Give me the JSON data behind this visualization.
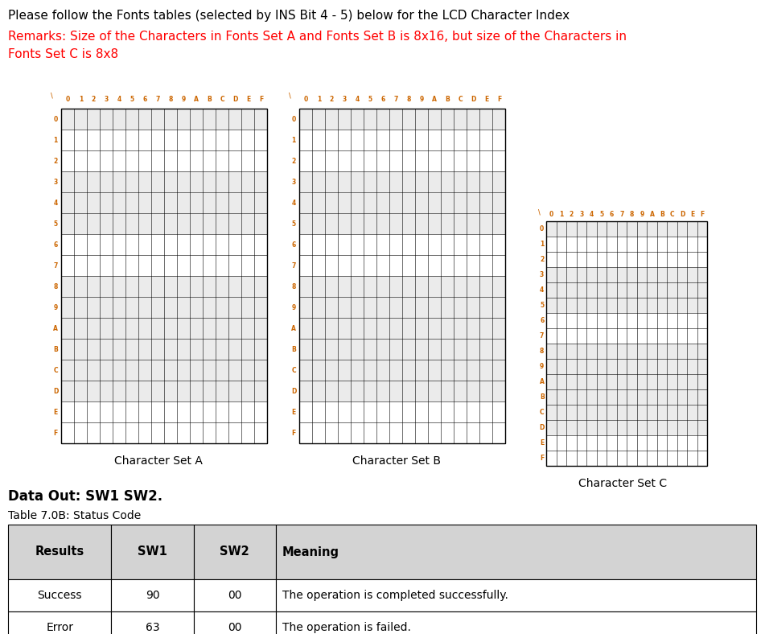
{
  "title_text": "Please follow the Fonts tables (selected by INS Bit 4 - 5) below for the LCD Character Index",
  "remarks_line1": "Remarks: Size of the Characters in Fonts Set A and Fonts Set B is 8x16, but size of the Characters in",
  "remarks_line2": "Fonts Set C is 8x8",
  "remarks_color": "#FF0000",
  "title_color": "#000000",
  "charset_a_label": "Character Set A",
  "charset_b_label": "Character Set B",
  "charset_c_label": "Character Set C",
  "data_out_text": "Data Out: SW1 SW2.",
  "table_title": "Table 7.0B: Status Code",
  "table_headers": [
    "Results",
    "SW1",
    "SW2",
    "Meaning"
  ],
  "table_rows": [
    [
      "Success",
      "90",
      "00",
      "The operation is completed successfully."
    ],
    [
      "Error",
      "63",
      "00",
      "The operation is failed."
    ]
  ],
  "header_bg": "#D3D3D3",
  "row_bg": "#FFFFFF",
  "table_border_color": "#000000",
  "bg_color": "#FFFFFF",
  "header_label_color": "#CC6600",
  "shaded_row_color": "#EBEBEB",
  "charset_a_shaded": [
    0,
    3,
    4,
    5,
    8,
    9,
    10,
    11,
    12,
    13
  ],
  "charset_b_shaded": [
    0,
    3,
    4,
    5,
    8,
    9,
    10,
    11,
    12,
    13
  ],
  "charset_c_shaded": [
    0,
    3,
    4,
    5,
    8,
    9,
    10,
    11,
    12,
    13
  ]
}
